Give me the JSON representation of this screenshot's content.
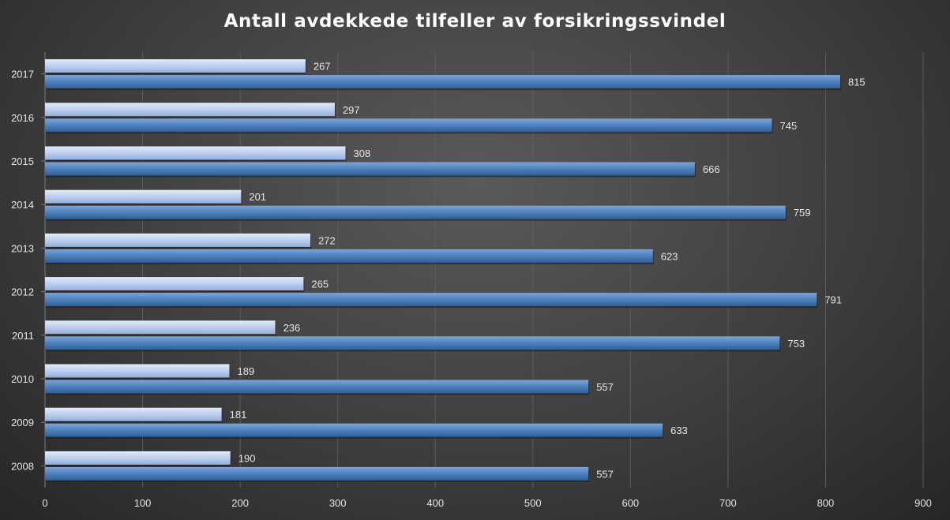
{
  "chart_data": {
    "type": "bar",
    "orientation": "horizontal",
    "title": "Antall avdekkede tilfeller av forsikringssvindel",
    "categories": [
      "2008",
      "2009",
      "2010",
      "2011",
      "2012",
      "2013",
      "2014",
      "2015",
      "2016",
      "2017"
    ],
    "series": [
      {
        "values": [
          190,
          181,
          189,
          236,
          265,
          272,
          201,
          308,
          297,
          267
        ],
        "color": "#b8ccec"
      },
      {
        "values": [
          557,
          633,
          557,
          753,
          791,
          623,
          759,
          666,
          745,
          815
        ],
        "color": "#4f81bd"
      }
    ],
    "x_ticks": [
      "0",
      "100",
      "200",
      "300",
      "400",
      "500",
      "600",
      "700",
      "800",
      "900"
    ],
    "xlim": [
      0,
      900
    ],
    "xlabel": "",
    "ylabel": "",
    "grid": "vertical",
    "legend": "none",
    "data_labels": true,
    "background": "#3a3a3a"
  }
}
